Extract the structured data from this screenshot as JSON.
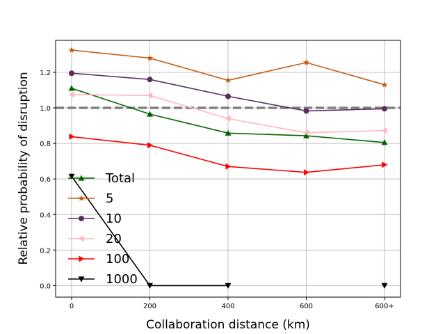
{
  "chart_data": {
    "type": "line",
    "title": "",
    "xlabel": "Collaboration distance (km)",
    "ylabel": "Relative probability of disruption",
    "categories": [
      "0",
      "200",
      "400",
      "600",
      "600+"
    ],
    "ylim": [
      -0.065,
      1.38
    ],
    "yticks": [
      "0.0",
      "0.2",
      "0.4",
      "0.6",
      "0.8",
      "1.0",
      "1.2"
    ],
    "ytick_values": [
      0.0,
      0.2,
      0.4,
      0.6,
      0.8,
      1.0,
      1.2
    ],
    "grid": true,
    "legend_position": "center-left",
    "reference_line": {
      "y": 1.0,
      "color": "#808080",
      "style": "dashed"
    },
    "series": [
      {
        "name": "Total",
        "color": "#006400",
        "marker": "triangle-up",
        "values": [
          1.11,
          0.965,
          0.858,
          0.843,
          0.805
        ]
      },
      {
        "name": "5",
        "color": "#c55a11",
        "marker": "star",
        "values": [
          1.325,
          1.28,
          1.155,
          1.255,
          1.13
        ]
      },
      {
        "name": "10",
        "color": "#5a2d5f",
        "marker": "circle",
        "values": [
          1.195,
          1.16,
          1.065,
          0.983,
          0.995
        ]
      },
      {
        "name": "20",
        "color": "#ffb6c1",
        "marker": "triangle-left",
        "values": [
          1.075,
          1.07,
          0.94,
          0.86,
          0.872
        ]
      },
      {
        "name": "100",
        "color": "#ff0000",
        "marker": "triangle-right",
        "values": [
          0.838,
          0.79,
          0.67,
          0.637,
          0.68
        ]
      },
      {
        "name": "1000",
        "color": "#000000",
        "marker": "triangle-down",
        "values": [
          0.615,
          0.0,
          0.0,
          null,
          0.0
        ]
      }
    ]
  }
}
